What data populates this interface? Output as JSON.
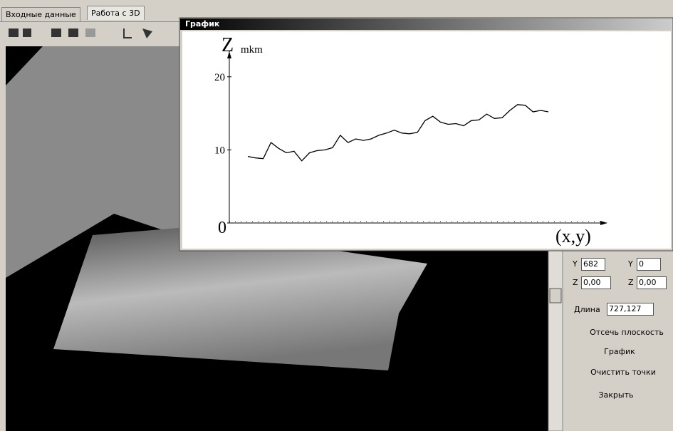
{
  "tabs": [
    "Входные данные",
    "Работа с 3D"
  ],
  "window_title": "График",
  "chart_data": {
    "type": "line",
    "y_label": "Z",
    "y_unit": "mkm",
    "x_label": "(x,y)",
    "categories": [
      null,
      null,
      null,
      null,
      null,
      null,
      null,
      null,
      null,
      null,
      null,
      null,
      null,
      null,
      null,
      null,
      null,
      null,
      null,
      null,
      null,
      null,
      null,
      null,
      null,
      null,
      null,
      null,
      null,
      null,
      null,
      null,
      null,
      null,
      null,
      null,
      null,
      null,
      null,
      null
    ],
    "values": [
      9.1,
      8.9,
      8.8,
      11.0,
      10.2,
      9.6,
      9.8,
      8.5,
      9.6,
      9.9,
      10.0,
      10.3,
      12.0,
      11.0,
      11.5,
      11.3,
      11.5,
      12.0,
      12.3,
      12.7,
      12.3,
      12.2,
      12.4,
      14.0,
      14.6,
      13.8,
      13.5,
      13.6,
      13.3,
      14.0,
      14.1,
      14.9,
      14.3,
      14.4,
      15.4,
      16.2,
      16.1,
      15.2,
      15.4,
      15.2
    ],
    "color": "#000000",
    "ylim": [
      0,
      23
    ],
    "yticks": [
      0,
      10,
      20
    ]
  },
  "panel": {
    "y1_label": "Y",
    "y1": "682",
    "y2_label": "Y",
    "y2": "0",
    "z1_label": "Z",
    "z1": "0,00",
    "z2_label": "Z",
    "z2": "0,00",
    "length_label": "Длина",
    "length": "727,127",
    "buttons": [
      "Отсечь плоскость",
      "График",
      "Очистить точки",
      "Закрыть"
    ]
  }
}
